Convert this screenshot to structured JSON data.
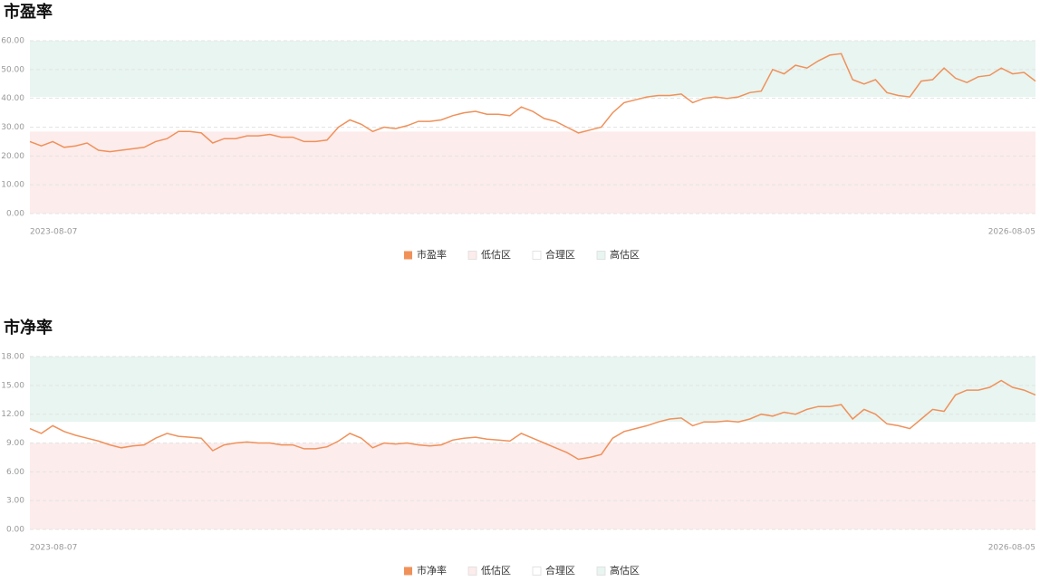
{
  "chart_data": [
    {
      "type": "line",
      "title": "市盈率",
      "categories": [
        "2023-08-07",
        null,
        null,
        null,
        null,
        null,
        null,
        null,
        null,
        null,
        null,
        null,
        null,
        null,
        null,
        null,
        null,
        null,
        null,
        null,
        null,
        null,
        null,
        null,
        null,
        null,
        null,
        null,
        null,
        null,
        null,
        null,
        null,
        null,
        null,
        null,
        null,
        null,
        null,
        null,
        null,
        null,
        null,
        null,
        null,
        null,
        null,
        null,
        null,
        null,
        null,
        null,
        null,
        null,
        null,
        null,
        null,
        null,
        null,
        null,
        null,
        null,
        null,
        null,
        null,
        null,
        null,
        null,
        null,
        null,
        null,
        null,
        null,
        null,
        null,
        null,
        null,
        null,
        null,
        null,
        null,
        null,
        null,
        null,
        null,
        null,
        null,
        null,
        "2026-08-05"
      ],
      "series": [
        {
          "name": "市盈率",
          "color": "#f0915a",
          "values": [
            25,
            23.5,
            25,
            23,
            23.5,
            24.5,
            22,
            21.5,
            22,
            22.5,
            23,
            25,
            26,
            28.5,
            28.5,
            28,
            24.5,
            26,
            26,
            27,
            27,
            27.5,
            26.5,
            26.5,
            25,
            25,
            25.5,
            30,
            32.5,
            31,
            28.5,
            30,
            29.5,
            30.5,
            32,
            32,
            32.5,
            34,
            35,
            35.5,
            34.5,
            34.5,
            34,
            37,
            35.5,
            33,
            32,
            30,
            28,
            29,
            30,
            35,
            38.5,
            39.5,
            40.5,
            41,
            41,
            41.5,
            38.5,
            40,
            40.5,
            40,
            40.5,
            42,
            42.5,
            50,
            48.5,
            51.5,
            50.5,
            53,
            55,
            55.5,
            46.5,
            45,
            46.5,
            42,
            41,
            40.5,
            46,
            46.5,
            50.5,
            47,
            45.5,
            47.5,
            48,
            50.5,
            48.5,
            49,
            46
          ]
        }
      ],
      "bands": [
        {
          "name": "低估区",
          "color": "#fdecec",
          "range": [
            0,
            28.5
          ]
        },
        {
          "name": "合理区",
          "color": "#ffffff",
          "range": [
            28.5,
            40.5
          ]
        },
        {
          "name": "高估区",
          "color": "#e8f5f1",
          "range": [
            40.5,
            60
          ]
        }
      ],
      "ylim": [
        0,
        60
      ],
      "yticks": [
        {
          "value": 0,
          "label": "0.00"
        },
        {
          "value": 10,
          "label": "10.00"
        },
        {
          "value": 20,
          "label": "20.00"
        },
        {
          "value": 30,
          "label": "30.00"
        },
        {
          "value": 40,
          "label": "40.00"
        },
        {
          "value": 50,
          "label": "50.00"
        },
        {
          "value": 60,
          "label": "60.00"
        }
      ],
      "grid": true
    },
    {
      "type": "line",
      "title": "市净率",
      "categories": [
        "2023-08-07",
        null,
        null,
        null,
        null,
        null,
        null,
        null,
        null,
        null,
        null,
        null,
        null,
        null,
        null,
        null,
        null,
        null,
        null,
        null,
        null,
        null,
        null,
        null,
        null,
        null,
        null,
        null,
        null,
        null,
        null,
        null,
        null,
        null,
        null,
        null,
        null,
        null,
        null,
        null,
        null,
        null,
        null,
        null,
        null,
        null,
        null,
        null,
        null,
        null,
        null,
        null,
        null,
        null,
        null,
        null,
        null,
        null,
        null,
        null,
        null,
        null,
        null,
        null,
        null,
        null,
        null,
        null,
        null,
        null,
        null,
        null,
        null,
        null,
        null,
        null,
        null,
        null,
        null,
        null,
        null,
        null,
        null,
        null,
        null,
        null,
        null,
        null,
        "2026-08-05"
      ],
      "series": [
        {
          "name": "市净率",
          "color": "#f0915a",
          "values": [
            10.5,
            10,
            10.8,
            10.2,
            9.8,
            9.5,
            9.2,
            8.8,
            8.5,
            8.7,
            8.8,
            9.5,
            10,
            9.7,
            9.6,
            9.5,
            8.2,
            8.8,
            9,
            9.1,
            9,
            9,
            8.8,
            8.8,
            8.4,
            8.4,
            8.6,
            9.2,
            10,
            9.5,
            8.5,
            9,
            8.9,
            9,
            8.8,
            8.7,
            8.8,
            9.3,
            9.5,
            9.6,
            9.4,
            9.3,
            9.2,
            10,
            9.5,
            9,
            8.5,
            8,
            7.3,
            7.5,
            7.8,
            9.5,
            10.2,
            10.5,
            10.8,
            11.2,
            11.5,
            11.6,
            10.8,
            11.2,
            11.2,
            11.3,
            11.2,
            11.5,
            12,
            11.8,
            12.2,
            12,
            12.5,
            12.8,
            12.8,
            13,
            11.5,
            12.5,
            12,
            11,
            10.8,
            10.5,
            11.5,
            12.5,
            12.3,
            14,
            14.5,
            14.5,
            14.8,
            15.5,
            14.8,
            14.5,
            14
          ]
        }
      ],
      "bands": [
        {
          "name": "低估区",
          "color": "#fdecec",
          "range": [
            0,
            9
          ]
        },
        {
          "name": "合理区",
          "color": "#ffffff",
          "range": [
            9,
            11.2
          ]
        },
        {
          "name": "高估区",
          "color": "#e8f5f1",
          "range": [
            11.2,
            18
          ]
        }
      ],
      "ylim": [
        0,
        18
      ],
      "yticks": [
        {
          "value": 0,
          "label": "0.00"
        },
        {
          "value": 3,
          "label": "3.00"
        },
        {
          "value": 6,
          "label": "6.00"
        },
        {
          "value": 9,
          "label": "9.00"
        },
        {
          "value": 12,
          "label": "12.00"
        },
        {
          "value": 15,
          "label": "15.00"
        },
        {
          "value": 18,
          "label": "18.00"
        }
      ],
      "grid": true
    }
  ]
}
